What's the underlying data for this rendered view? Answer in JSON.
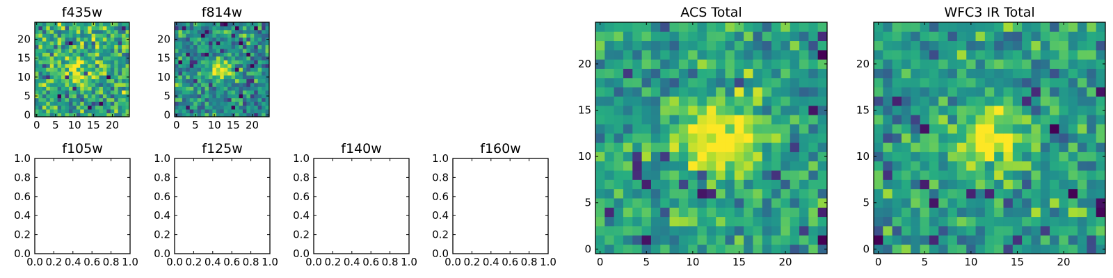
{
  "chart_data": [
    {
      "type": "heatmap",
      "title": "f435w",
      "grid": false,
      "colormap": "viridis",
      "image_size": [
        25,
        25
      ],
      "xticks": [
        "0",
        "5",
        "10",
        "15",
        "20"
      ],
      "yticks": [
        "0",
        "5",
        "10",
        "15",
        "20"
      ],
      "xlim": [
        -0.5,
        24.5
      ],
      "ylim": [
        -0.5,
        24.5
      ],
      "noise_level": 0.62,
      "noise_spread": 0.2,
      "peak": {
        "x": 11,
        "y": 12,
        "amplitude": 0.35,
        "sigma": 2.2
      },
      "seed": 11
    },
    {
      "type": "heatmap",
      "title": "f814w",
      "grid": false,
      "colormap": "viridis",
      "image_size": [
        25,
        25
      ],
      "xticks": [
        "0",
        "5",
        "10",
        "15",
        "20"
      ],
      "yticks": [
        "0",
        "5",
        "10",
        "15",
        "20"
      ],
      "xlim": [
        -0.5,
        24.5
      ],
      "ylim": [
        -0.5,
        24.5
      ],
      "noise_level": 0.5,
      "noise_spread": 0.18,
      "peak": {
        "x": 12,
        "y": 12,
        "amplitude": 0.55,
        "sigma": 2.0
      },
      "seed": 23
    },
    {
      "type": "empty",
      "title": "f105w",
      "xticks": [
        "0.0",
        "0.2",
        "0.4",
        "0.6",
        "0.8",
        "1.0"
      ],
      "yticks": [
        "0.0",
        "0.2",
        "0.4",
        "0.6",
        "0.8",
        "1.0"
      ],
      "xlim": [
        0,
        1
      ],
      "ylim": [
        0,
        1
      ]
    },
    {
      "type": "empty",
      "title": "f125w",
      "xticks": [
        "0.0",
        "0.2",
        "0.4",
        "0.6",
        "0.8",
        "1.0"
      ],
      "yticks": [
        "0.0",
        "0.2",
        "0.4",
        "0.6",
        "0.8",
        "1.0"
      ],
      "xlim": [
        0,
        1
      ],
      "ylim": [
        0,
        1
      ]
    },
    {
      "type": "empty",
      "title": "f140w",
      "xticks": [
        "0.0",
        "0.2",
        "0.4",
        "0.6",
        "0.8",
        "1.0"
      ],
      "yticks": [
        "0.0",
        "0.2",
        "0.4",
        "0.6",
        "0.8",
        "1.0"
      ],
      "xlim": [
        0,
        1
      ],
      "ylim": [
        0,
        1
      ]
    },
    {
      "type": "empty",
      "title": "f160w",
      "xticks": [
        "0.0",
        "0.2",
        "0.4",
        "0.6",
        "0.8",
        "1.0"
      ],
      "yticks": [
        "0.0",
        "0.2",
        "0.4",
        "0.6",
        "0.8",
        "1.0"
      ],
      "xlim": [
        0,
        1
      ],
      "ylim": [
        0,
        1
      ]
    },
    {
      "type": "heatmap",
      "title": "ACS Total",
      "grid": false,
      "colormap": "viridis",
      "image_size": [
        25,
        25
      ],
      "xticks": [
        "0",
        "5",
        "10",
        "15",
        "20"
      ],
      "yticks": [
        "0",
        "5",
        "10",
        "15",
        "20"
      ],
      "xlim": [
        -0.5,
        24.5
      ],
      "ylim": [
        -0.5,
        24.5
      ],
      "noise_level": 0.58,
      "noise_spread": 0.16,
      "peak": {
        "x": 13,
        "y": 12,
        "amplitude": 0.45,
        "sigma": 3.0
      },
      "seed": 37
    },
    {
      "type": "heatmap",
      "title": "WFC3 IR Total",
      "grid": false,
      "colormap": "viridis",
      "image_size": [
        25,
        25
      ],
      "xticks": [
        "0",
        "5",
        "10",
        "15",
        "20"
      ],
      "yticks": [
        "0",
        "5",
        "10",
        "15",
        "20"
      ],
      "xlim": [
        -0.5,
        24.5
      ],
      "ylim": [
        -0.5,
        24.5
      ],
      "noise_level": 0.56,
      "noise_spread": 0.16,
      "peak": {
        "x": 12,
        "y": 12,
        "amplitude": 0.5,
        "sigma": 2.2
      },
      "seed": 53
    }
  ]
}
